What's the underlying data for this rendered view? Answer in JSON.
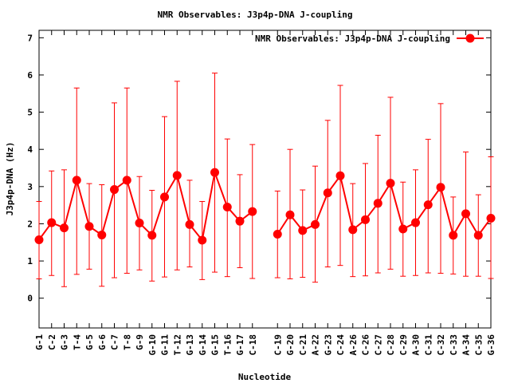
{
  "chart_data": {
    "type": "line",
    "title": "NMR Observables: J3p4p-DNA J-coupling",
    "xlabel": "Nucleotide",
    "ylabel": "J3p4p-DNA (Hz)",
    "ylim": [
      -0.8,
      7.2
    ],
    "yticks": [
      "0",
      "1",
      "2",
      "3",
      "4",
      "5",
      "6",
      "7"
    ],
    "legend_position": "top-right",
    "grid": false,
    "series_color": "#ff0000",
    "series": [
      {
        "name": "NMR Observables: J3p4p-DNA J-coupling",
        "segments": [
          {
            "categories": [
              "G-1",
              "C-2",
              "G-3",
              "T-4",
              "G-5",
              "G-6",
              "C-7",
              "T-8",
              "G-9",
              "G-10",
              "G-11",
              "T-12",
              "G-13",
              "G-14",
              "G-15",
              "T-16",
              "G-17",
              "C-18"
            ],
            "values": [
              1.57,
              2.03,
              1.89,
              3.17,
              1.93,
              1.7,
              2.92,
              3.17,
              2.02,
              1.69,
              2.72,
              3.3,
              1.98,
              1.56,
              3.38,
              2.45,
              2.07,
              2.33
            ],
            "err_low": [
              0.52,
              0.61,
              0.31,
              0.64,
              0.78,
              0.32,
              0.55,
              0.67,
              0.76,
              0.46,
              0.57,
              0.76,
              0.84,
              0.5,
              0.7,
              0.58,
              0.82,
              0.53
            ],
            "err_high": [
              2.6,
              3.42,
              3.45,
              5.65,
              3.08,
              3.05,
              5.25,
              5.65,
              3.27,
              2.9,
              4.88,
              5.83,
              3.17,
              2.6,
              6.05,
              4.28,
              3.32,
              4.13
            ]
          },
          {
            "categories": [
              "C-19",
              "G-20",
              "C-21",
              "A-22",
              "G-23",
              "C-24",
              "A-26",
              "C-26",
              "C-27",
              "C-28",
              "C-29",
              "A-30",
              "C-31",
              "C-32",
              "C-33",
              "A-34",
              "C-35",
              "G-36"
            ],
            "values": [
              1.72,
              2.24,
              1.82,
              1.98,
              2.83,
              3.29,
              1.84,
              2.11,
              2.55,
              3.09,
              1.86,
              2.03,
              2.51,
              2.98,
              1.69,
              2.27,
              1.69,
              2.15
            ],
            "err_low": [
              0.55,
              0.52,
              0.56,
              0.43,
              0.84,
              0.88,
              0.58,
              0.6,
              0.68,
              0.78,
              0.59,
              0.61,
              0.68,
              0.67,
              0.65,
              0.59,
              0.59,
              0.53
            ],
            "err_high": [
              2.88,
              4.0,
              2.91,
              3.55,
              4.78,
              5.72,
              3.08,
              3.62,
              4.38,
              5.4,
              3.12,
              3.45,
              4.27,
              5.23,
              2.72,
              3.93,
              2.78,
              3.8
            ]
          }
        ]
      }
    ]
  }
}
